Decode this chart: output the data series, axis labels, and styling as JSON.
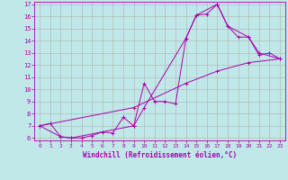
{
  "xlabel": "Windchill (Refroidissement éolien,°C)",
  "xlim": [
    -0.5,
    23.5
  ],
  "ylim": [
    5.8,
    17.2
  ],
  "xticks": [
    0,
    1,
    2,
    3,
    4,
    5,
    6,
    7,
    8,
    9,
    10,
    11,
    12,
    13,
    14,
    15,
    16,
    17,
    18,
    19,
    20,
    21,
    22,
    23
  ],
  "yticks": [
    6,
    7,
    8,
    9,
    10,
    11,
    12,
    13,
    14,
    15,
    16,
    17
  ],
  "bg_color": "#c0e8e8",
  "line_color": "#aa00aa",
  "grid_color": "#b0b0b0",
  "line1_x": [
    0,
    1,
    2,
    3,
    4,
    5,
    6,
    7,
    8,
    9,
    10,
    11,
    12,
    13,
    14,
    15,
    16,
    17,
    18,
    19,
    20,
    21,
    22,
    23
  ],
  "line1_y": [
    7.0,
    7.2,
    6.1,
    6.0,
    6.0,
    6.2,
    6.5,
    6.4,
    7.7,
    7.0,
    10.5,
    9.0,
    9.0,
    8.8,
    14.2,
    16.1,
    16.2,
    17.0,
    15.2,
    14.3,
    14.3,
    12.8,
    13.0,
    12.5
  ],
  "line2_x": [
    0,
    2,
    3,
    9,
    10,
    14,
    15,
    17,
    18,
    20,
    21,
    23
  ],
  "line2_y": [
    7.0,
    6.1,
    6.0,
    7.0,
    8.5,
    14.2,
    16.1,
    17.0,
    15.2,
    14.3,
    13.0,
    12.5
  ],
  "line3_x": [
    0,
    9,
    14,
    17,
    20,
    23
  ],
  "line3_y": [
    7.0,
    8.5,
    10.5,
    11.5,
    12.2,
    12.5
  ]
}
